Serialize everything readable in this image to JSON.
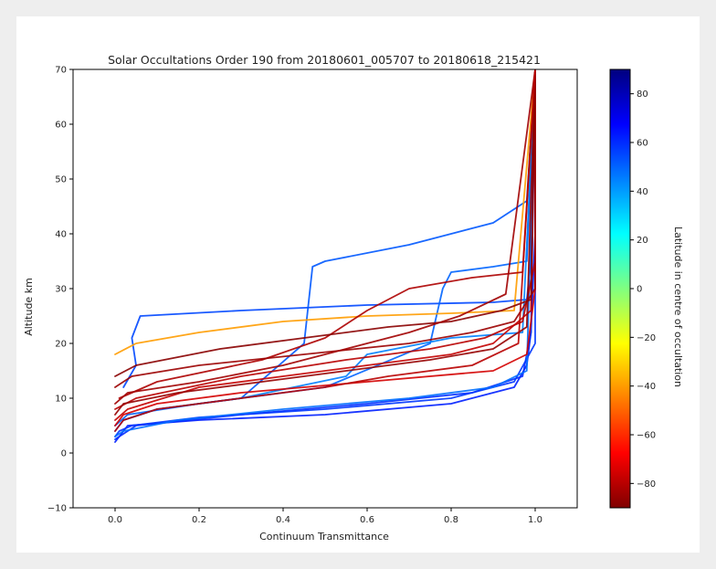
{
  "chart_data": {
    "type": "line",
    "title": "Solar Occultations Order 190 from 20180601_005707 to 20180618_215421",
    "xlabel": "Continuum Transmittance",
    "ylabel": "Altitude km",
    "xlim": [
      -0.1,
      1.1
    ],
    "ylim": [
      -10,
      70
    ],
    "xticks": [
      0.0,
      0.2,
      0.4,
      0.6,
      0.8,
      1.0
    ],
    "xtick_labels": [
      "0.0",
      "0.2",
      "0.4",
      "0.6",
      "0.8",
      "1.0"
    ],
    "yticks": [
      -10,
      0,
      10,
      20,
      30,
      40,
      50,
      60,
      70
    ],
    "ytick_labels": [
      "−10",
      "0",
      "10",
      "20",
      "30",
      "40",
      "50",
      "60",
      "70"
    ],
    "grid": false,
    "legend": "none",
    "colorbar": {
      "label": "Latitude in centre of occultation",
      "range": [
        -90,
        90
      ],
      "ticks": [
        80,
        60,
        40,
        20,
        0,
        -20,
        -40,
        -60,
        -80
      ],
      "tick_labels": [
        "80",
        "60",
        "40",
        "20",
        "0",
        "−20",
        "−40",
        "−60",
        "−80"
      ],
      "colormap": "jet",
      "stops": [
        "#7f0000",
        "#ff0000",
        "#ff8000",
        "#ffff00",
        "#80ff80",
        "#00ffff",
        "#0080ff",
        "#0000ff",
        "#00007f"
      ]
    },
    "series": [
      {
        "latitude": 62,
        "x": [
          0.0,
          0.01,
          0.03,
          0.2,
          0.5,
          0.8,
          0.95,
          0.98,
          0.99,
          1.0,
          1.0
        ],
        "y": [
          2,
          3,
          5,
          6,
          7,
          9,
          12,
          16,
          22,
          40,
          70
        ]
      },
      {
        "latitude": 60,
        "x": [
          0.0,
          0.02,
          0.05,
          0.3,
          0.6,
          0.85,
          0.97,
          0.99,
          1.0
        ],
        "y": [
          2.5,
          3.5,
          5,
          7,
          9,
          11,
          14,
          22,
          70
        ]
      },
      {
        "latitude": 58,
        "x": [
          0.0,
          0.01,
          0.04,
          0.2,
          0.5,
          0.8,
          0.95,
          1.0,
          1.0
        ],
        "y": [
          3,
          4,
          5,
          6.5,
          8,
          10,
          13,
          20,
          70
        ]
      },
      {
        "latitude": 55,
        "x": [
          0.02,
          0.05,
          0.04,
          0.06,
          0.3,
          0.6,
          0.9,
          0.98,
          0.99,
          1.0
        ],
        "y": [
          12,
          16,
          21,
          25,
          26,
          27,
          27.5,
          28,
          35,
          70
        ]
      },
      {
        "latitude": 52,
        "x": [
          0.0,
          0.02,
          0.1,
          0.3,
          0.45,
          0.47,
          0.5,
          0.7,
          0.9,
          0.98,
          1.0
        ],
        "y": [
          4,
          6,
          8,
          10,
          20,
          34,
          35,
          38,
          42,
          46,
          70
        ]
      },
      {
        "latitude": 50,
        "x": [
          0.0,
          0.03,
          0.2,
          0.5,
          0.75,
          0.78,
          0.8,
          0.9,
          0.98,
          1.0
        ],
        "y": [
          5,
          7,
          9,
          12,
          20,
          30,
          33,
          34,
          35,
          70
        ]
      },
      {
        "latitude": 48,
        "x": [
          0.0,
          0.02,
          0.15,
          0.4,
          0.7,
          0.9,
          0.98,
          1.0
        ],
        "y": [
          3,
          4,
          6,
          8,
          10,
          12,
          15,
          70
        ]
      },
      {
        "latitude": 45,
        "x": [
          0.02,
          0.1,
          0.3,
          0.55,
          0.6,
          0.8,
          0.97,
          1.0
        ],
        "y": [
          6,
          8,
          10,
          14,
          18,
          21,
          22,
          70
        ]
      },
      {
        "latitude": -40,
        "x": [
          0.0,
          0.05,
          0.2,
          0.4,
          0.6,
          0.8,
          0.95,
          1.0
        ],
        "y": [
          18,
          20,
          22,
          24,
          25,
          25.5,
          26,
          70
        ]
      },
      {
        "latitude": -75,
        "x": [
          0.0,
          0.02,
          0.1,
          0.3,
          0.6,
          0.9,
          0.98,
          1.0,
          1.0
        ],
        "y": [
          5,
          7,
          9,
          11,
          13,
          15,
          18,
          30,
          70
        ]
      },
      {
        "latitude": -78,
        "x": [
          0.0,
          0.03,
          0.2,
          0.4,
          0.6,
          0.8,
          0.9,
          0.99,
          1.0
        ],
        "y": [
          6,
          8,
          12,
          14,
          16,
          18,
          20,
          26,
          70
        ]
      },
      {
        "latitude": -80,
        "x": [
          0.0,
          0.05,
          0.3,
          0.55,
          0.75,
          0.88,
          0.97,
          1.0,
          1.0
        ],
        "y": [
          8,
          10,
          14,
          17,
          19,
          21,
          24,
          35,
          70
        ]
      },
      {
        "latitude": -82,
        "x": [
          0.01,
          0.1,
          0.35,
          0.5,
          0.6,
          0.7,
          0.85,
          0.97,
          1.0
        ],
        "y": [
          10,
          13,
          17,
          21,
          26,
          30,
          32,
          33,
          70
        ]
      },
      {
        "latitude": -85,
        "x": [
          0.0,
          0.04,
          0.2,
          0.45,
          0.7,
          0.85,
          0.95,
          1.0,
          1.0
        ],
        "y": [
          12,
          14,
          16,
          18,
          20,
          22,
          24,
          30,
          70
        ]
      },
      {
        "latitude": -86,
        "x": [
          0.0,
          0.02,
          0.15,
          0.35,
          0.55,
          0.75,
          0.9,
          0.98,
          1.0
        ],
        "y": [
          7,
          9,
          11,
          13,
          15,
          17,
          19,
          23,
          70
        ]
      },
      {
        "latitude": -88,
        "x": [
          0.0,
          0.05,
          0.25,
          0.45,
          0.65,
          0.8,
          0.92,
          0.99,
          1.0
        ],
        "y": [
          14,
          16,
          19,
          21,
          23,
          24,
          26,
          28,
          70
        ]
      },
      {
        "latitude": -84,
        "x": [
          0.0,
          0.03,
          0.2,
          0.4,
          0.55,
          0.7,
          0.82,
          0.93,
          1.0
        ],
        "y": [
          9,
          11,
          13,
          16,
          19,
          22,
          25,
          29,
          70
        ]
      },
      {
        "latitude": -80,
        "x": [
          0.0,
          0.02,
          0.1,
          0.3,
          0.5,
          0.65,
          0.85,
          0.96,
          1.0
        ],
        "y": [
          4,
          6,
          8,
          10,
          12,
          14,
          16,
          20,
          70
        ]
      }
    ]
  }
}
